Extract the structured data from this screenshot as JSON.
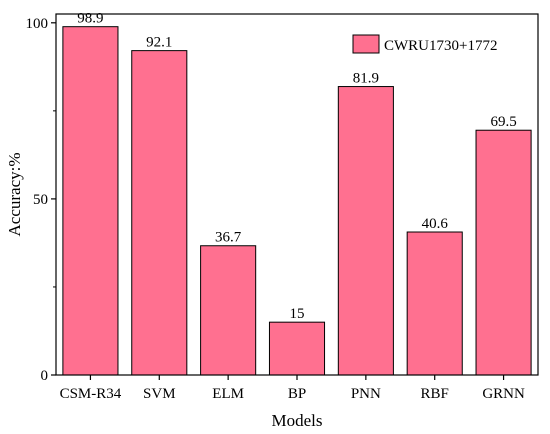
{
  "chart_data": {
    "type": "bar",
    "categories": [
      "CSM-R34",
      "SVM",
      "ELM",
      "BP",
      "PNN",
      "RBF",
      "GRNN"
    ],
    "series": [
      {
        "name": "CWRU1730+1772",
        "values": [
          98.9,
          92.1,
          36.7,
          15,
          81.9,
          40.6,
          69.5
        ],
        "value_labels": [
          "98.9",
          "92.1",
          "36.7",
          "15",
          "81.9",
          "40.6",
          "69.5"
        ],
        "color": "#ff7090"
      }
    ],
    "xlabel": "Models",
    "ylabel": "Accuracy:%",
    "ylim": [
      0,
      100
    ],
    "yticks": [
      0,
      50,
      100
    ],
    "ytick_labels": [
      "0",
      "50",
      "100"
    ],
    "grid": false,
    "legend": {
      "position": "top-right"
    }
  }
}
